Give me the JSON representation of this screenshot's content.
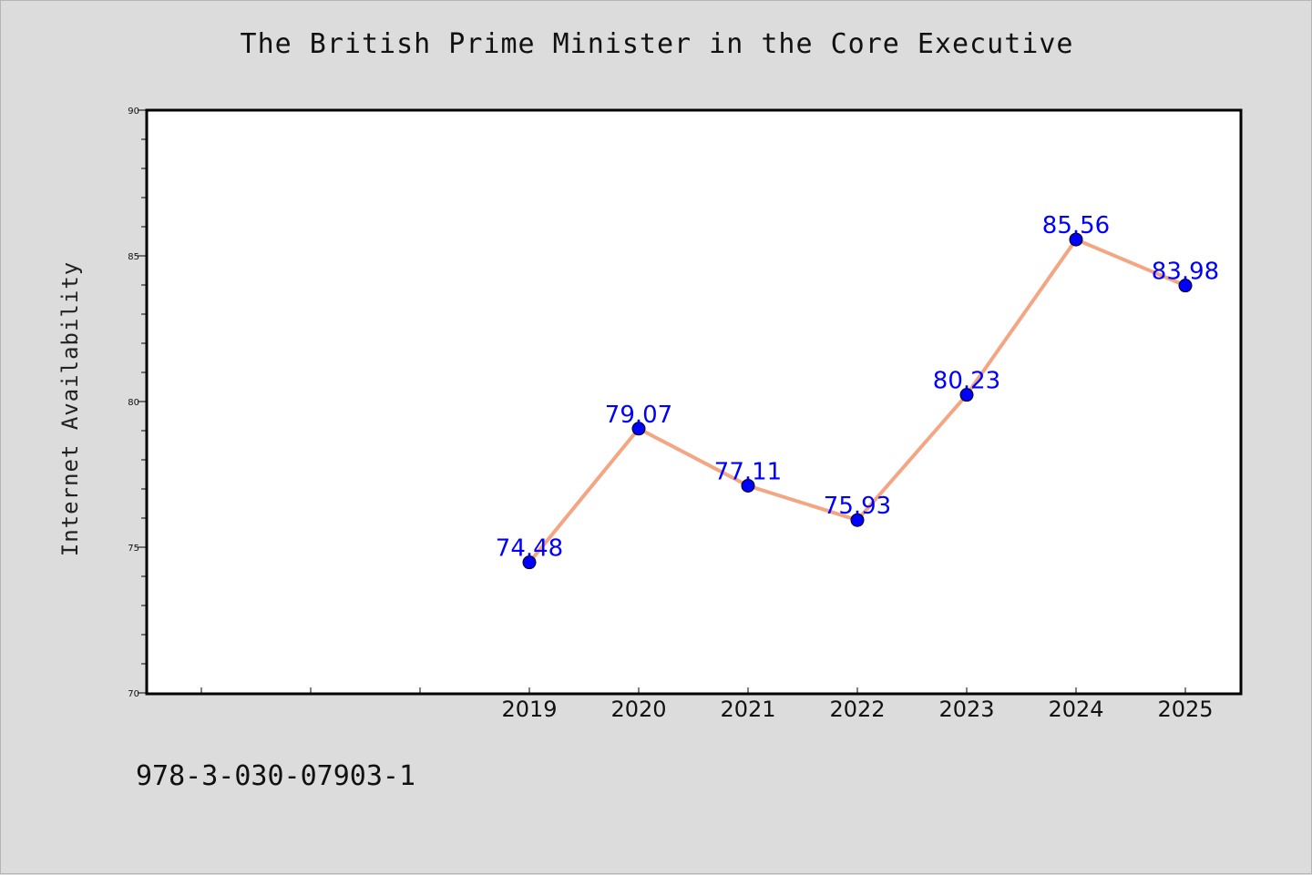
{
  "chart_data": {
    "type": "line",
    "title": "The British Prime Minister in the Core Executive",
    "ylabel": "Internet Availability",
    "xlabel": "",
    "x": [
      "2019",
      "2020",
      "2021",
      "2022",
      "2023",
      "2024",
      "2025"
    ],
    "series": [
      {
        "values": [
          74.48,
          79.07,
          77.11,
          75.93,
          80.23,
          85.56,
          83.98
        ]
      }
    ],
    "data_labels": [
      "74.48",
      "79.07",
      "77.11",
      "75.93",
      "80.23",
      "85.56",
      "83.98"
    ],
    "ylim": [
      70,
      90
    ],
    "yticks": [
      "70",
      "75",
      "80",
      "85",
      "90"
    ],
    "grid": false,
    "line_color": "#f4a582",
    "marker_color": "#0000ff",
    "label_color": "#0000ff"
  },
  "footnote": "978-3-030-07903-1"
}
